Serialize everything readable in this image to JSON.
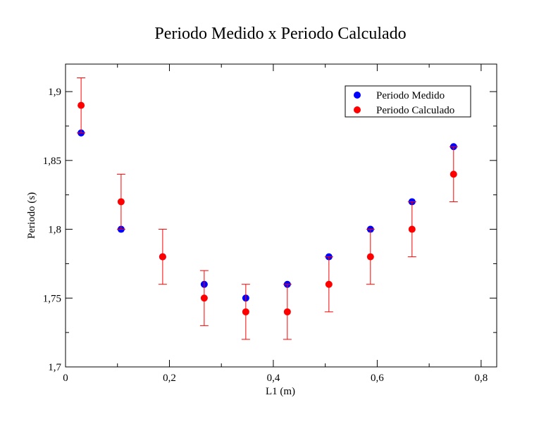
{
  "chart_data": {
    "type": "scatter",
    "title": "Periodo Medido x Periodo Calculado",
    "xlabel": "L1 (m)",
    "ylabel": "Periodo (s)",
    "xlim": [
      0,
      0.83
    ],
    "ylim": [
      1.7,
      1.92
    ],
    "x_ticks": [
      0,
      0.2,
      0.4,
      0.6,
      0.8
    ],
    "x_tick_labels": [
      "0",
      "0,2",
      "0,4",
      "0,6",
      "0,8"
    ],
    "y_ticks": [
      1.7,
      1.75,
      1.8,
      1.85,
      1.9
    ],
    "y_tick_labels": [
      "1,7",
      "1,75",
      "1,8",
      "1,85",
      "1,9"
    ],
    "grid": false,
    "legend_position": "top-right",
    "x": [
      0.03,
      0.107,
      0.187,
      0.267,
      0.347,
      0.427,
      0.507,
      0.587,
      0.667,
      0.747
    ],
    "series": [
      {
        "name": "Periodo Medido",
        "color": "#0000ff",
        "values": [
          1.87,
          1.8,
          1.78,
          1.76,
          1.75,
          1.76,
          1.78,
          1.8,
          1.82,
          1.86
        ]
      },
      {
        "name": "Periodo Calculado",
        "color": "#ff0000",
        "values": [
          1.89,
          1.82,
          1.78,
          1.75,
          1.74,
          1.74,
          1.76,
          1.78,
          1.8,
          1.84
        ],
        "error": [
          0.02,
          0.02,
          0.02,
          0.02,
          0.02,
          0.02,
          0.02,
          0.02,
          0.02,
          0.02
        ]
      }
    ]
  }
}
